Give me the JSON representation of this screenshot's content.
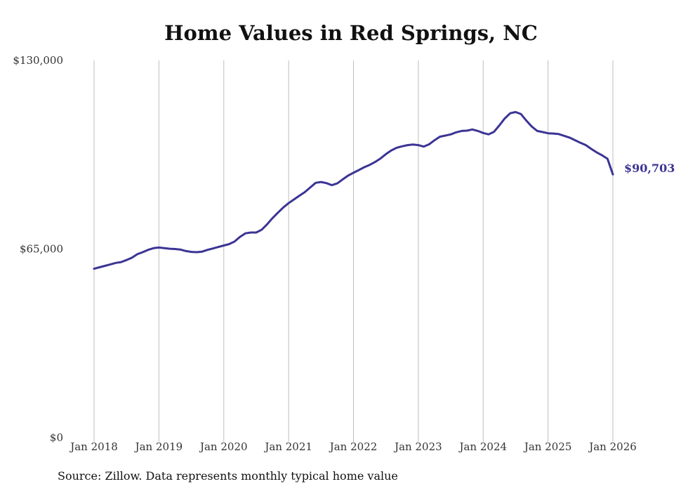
{
  "chart_data": {
    "type": "line",
    "title": "Home Values in Red Springs, NC",
    "xlabel": "",
    "ylabel": "",
    "ylim": [
      0,
      130000
    ],
    "y_ticks": [
      {
        "value": 0,
        "label": "$0"
      },
      {
        "value": 65000,
        "label": "$65,000"
      },
      {
        "value": 130000,
        "label": "$130,000"
      }
    ],
    "x_ticks": [
      {
        "value": 2018,
        "label": "Jan 2018"
      },
      {
        "value": 2019,
        "label": "Jan 2019"
      },
      {
        "value": 2020,
        "label": "Jan 2020"
      },
      {
        "value": 2021,
        "label": "Jan 2021"
      },
      {
        "value": 2022,
        "label": "Jan 2022"
      },
      {
        "value": 2023,
        "label": "Jan 2023"
      },
      {
        "value": 2024,
        "label": "Jan 2024"
      },
      {
        "value": 2025,
        "label": "Jan 2025"
      },
      {
        "value": 2026,
        "label": "Jan 2026"
      }
    ],
    "grid": "vertical",
    "line_color": "#3b3494",
    "end_label": "$90,703",
    "series": [
      {
        "x": [
          2018.0,
          2018.083,
          2018.167,
          2018.25,
          2018.333,
          2018.417,
          2018.5,
          2018.583,
          2018.667,
          2018.75,
          2018.833,
          2018.917,
          2019.0,
          2019.083,
          2019.167,
          2019.25,
          2019.333,
          2019.417,
          2019.5,
          2019.583,
          2019.667,
          2019.75,
          2019.833,
          2019.917,
          2020.0,
          2020.083,
          2020.167,
          2020.25,
          2020.333,
          2020.417,
          2020.5,
          2020.583,
          2020.667,
          2020.75,
          2020.833,
          2020.917,
          2021.0,
          2021.083,
          2021.167,
          2021.25,
          2021.333,
          2021.417,
          2021.5,
          2021.583,
          2021.667,
          2021.75,
          2021.833,
          2021.917,
          2022.0,
          2022.083,
          2022.167,
          2022.25,
          2022.333,
          2022.417,
          2022.5,
          2022.583,
          2022.667,
          2022.75,
          2022.833,
          2022.917,
          2023.0,
          2023.083,
          2023.167,
          2023.25,
          2023.333,
          2023.417,
          2023.5,
          2023.583,
          2023.667,
          2023.75,
          2023.833,
          2023.917,
          2024.0,
          2024.083,
          2024.167,
          2024.25,
          2024.333,
          2024.417,
          2024.5,
          2024.583,
          2024.667,
          2024.75,
          2024.833,
          2024.917,
          2025.0,
          2025.083,
          2025.167,
          2025.25,
          2025.333,
          2025.417,
          2025.5,
          2025.583,
          2025.667,
          2025.75,
          2025.833,
          2025.917,
          2026.0
        ],
        "values": [
          58200,
          58700,
          59200,
          59700,
          60200,
          60500,
          61200,
          62000,
          63200,
          63900,
          64700,
          65300,
          65500,
          65300,
          65100,
          65000,
          64800,
          64300,
          64000,
          63900,
          64100,
          64700,
          65200,
          65700,
          66200,
          66700,
          67600,
          69200,
          70400,
          70700,
          70700,
          71600,
          73500,
          75600,
          77500,
          79300,
          80800,
          82100,
          83400,
          84600,
          86200,
          87800,
          88100,
          87700,
          87000,
          87600,
          89000,
          90300,
          91300,
          92200,
          93200,
          94000,
          95000,
          96200,
          97700,
          99000,
          99900,
          100400,
          100800,
          101000,
          100800,
          100300,
          101100,
          102500,
          103700,
          104100,
          104500,
          105200,
          105700,
          105800,
          106200,
          105700,
          105000,
          104500,
          105400,
          107600,
          110000,
          111800,
          112200,
          111500,
          109200,
          107200,
          105700,
          105300,
          104900,
          104800,
          104600,
          104000,
          103400,
          102500,
          101600,
          100800,
          99500,
          98300,
          97300,
          96100,
          90703
        ]
      }
    ]
  },
  "footer": {
    "source": "Source: Zillow. Data represents monthly typical home value"
  }
}
